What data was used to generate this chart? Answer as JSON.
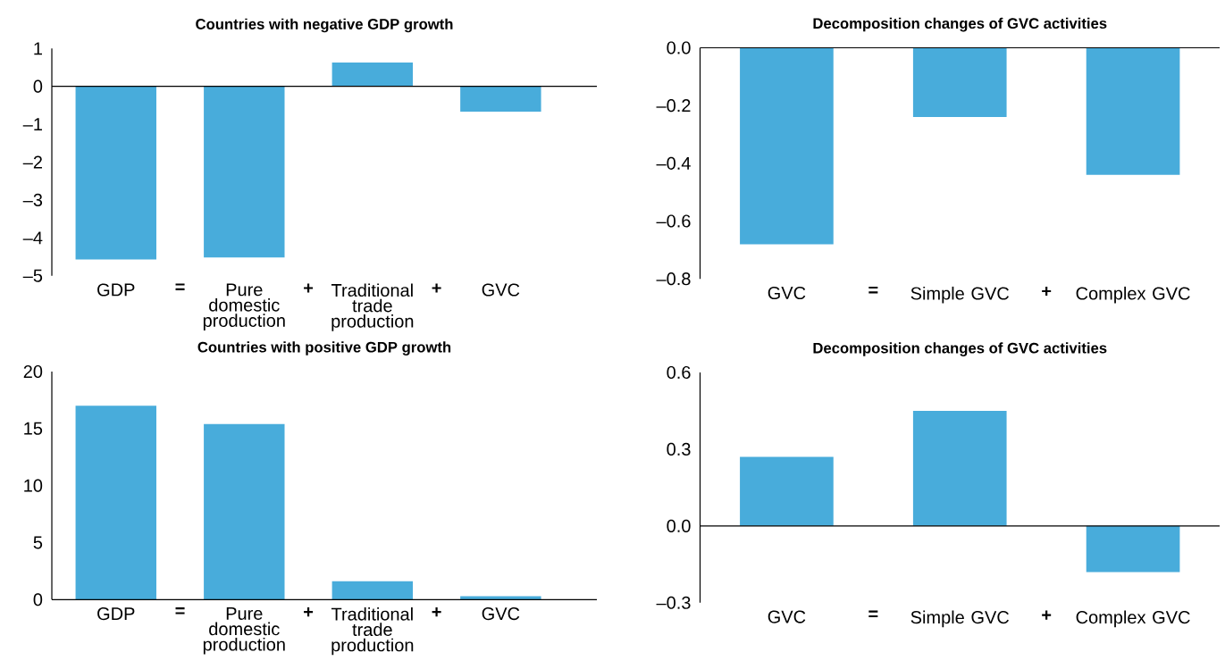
{
  "chart_data": [
    {
      "type": "bar",
      "title": "Countries with negative GDP growth",
      "categories": [
        "GDP",
        "Pure domestic production",
        "Traditional trade production",
        "GVC"
      ],
      "values": [
        -4.57,
        -4.52,
        0.63,
        -0.67
      ],
      "color": "#48acdb",
      "ylim": [
        -5,
        1
      ],
      "yticks": [
        {
          "value": -5,
          "label": "–5"
        },
        {
          "value": -4,
          "label": "–4"
        },
        {
          "value": -3,
          "label": "–3"
        },
        {
          "value": -2,
          "label": "–2"
        },
        {
          "value": -1,
          "label": "–1"
        },
        0,
        1
      ],
      "annotations": [
        "=",
        "+",
        "+"
      ]
    },
    {
      "type": "bar",
      "title": "Decomposition changes of GVC activities",
      "categories": [
        "GVC",
        "Simple GVC",
        "Complex GVC"
      ],
      "values": [
        -0.68,
        -0.24,
        -0.44
      ],
      "color": "#48acdb",
      "ylim": [
        -0.8,
        0
      ],
      "yticks": [
        {
          "value": -0.8,
          "label": "–0.8"
        },
        {
          "value": -0.6,
          "label": "–0.6"
        },
        {
          "value": -0.4,
          "label": "–0.4"
        },
        {
          "value": -0.2,
          "label": "–0.2"
        },
        {
          "value": 0,
          "label": "0.0"
        }
      ],
      "annotations": [
        "=",
        "+"
      ]
    },
    {
      "type": "bar",
      "title": "Countries with positive GDP growth",
      "categories": [
        "GDP",
        "Pure domestic production",
        "Traditional trade production",
        "GVC"
      ],
      "values": [
        17.0,
        15.4,
        1.6,
        0.3
      ],
      "color": "#48acdb",
      "ylim": [
        0,
        20
      ],
      "yticks": [
        0,
        5,
        10,
        15,
        20
      ],
      "annotations": [
        "=",
        "+",
        "+"
      ]
    },
    {
      "type": "bar",
      "title": "Decomposition changes of GVC activities",
      "categories": [
        "GVC",
        "Simple GVC",
        "Complex GVC"
      ],
      "values": [
        0.27,
        0.45,
        -0.18
      ],
      "color": "#48acdb",
      "ylim": [
        -0.3,
        0.6
      ],
      "yticks": [
        {
          "value": -0.3,
          "label": "–0.3"
        },
        {
          "value": 0,
          "label": "0.0"
        },
        {
          "value": 0.3,
          "label": "0.3"
        },
        {
          "value": 0.6,
          "label": "0.6"
        }
      ],
      "annotations": [
        "=",
        "+"
      ]
    }
  ]
}
